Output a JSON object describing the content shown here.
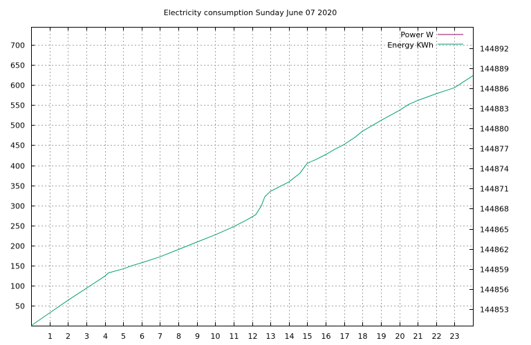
{
  "chart_data": {
    "type": "line",
    "title": "Electricity consumption Sunday June 07 2020",
    "xlabel": "",
    "ylabel": "",
    "x_ticks": [
      "1",
      "2",
      "3",
      "4",
      "5",
      "6",
      "7",
      "8",
      "9",
      "10",
      "11",
      "12",
      "13",
      "14",
      "15",
      "16",
      "17",
      "18",
      "19",
      "20",
      "21",
      "22",
      "23"
    ],
    "xlim": [
      0,
      24
    ],
    "y_left_ticks": [
      "50",
      "100",
      "150",
      "200",
      "250",
      "300",
      "350",
      "400",
      "450",
      "500",
      "550",
      "600",
      "650",
      "700"
    ],
    "ylim_left": [
      0,
      745
    ],
    "y_right_ticks": [
      "144853",
      "144856",
      "144859",
      "144862",
      "144865",
      "144868",
      "144871",
      "144874",
      "144877",
      "144880",
      "144883",
      "144886",
      "144889",
      "144892"
    ],
    "ylim_right": [
      144850.5,
      144895.2
    ],
    "grid": true,
    "legend_position": "top-right",
    "colors": {
      "power": "#990066",
      "energy": "#009e73"
    },
    "series": [
      {
        "name": "Power W",
        "axis": "left",
        "x": [],
        "y": []
      },
      {
        "name": "Energy KWh",
        "axis": "right",
        "x": [
          0,
          1,
          2,
          3,
          4,
          4.2,
          5,
          5.5,
          6,
          7,
          8,
          9,
          10,
          11,
          11.7,
          12.2,
          12.5,
          12.7,
          13,
          14,
          14.6,
          15,
          15.5,
          16,
          16.5,
          17,
          17.6,
          18,
          18.5,
          19,
          20,
          20.5,
          21,
          22,
          23,
          24
        ],
        "y": [
          144850.5,
          144852.4,
          144854.3,
          144856.1,
          144857.9,
          144858.4,
          144859.0,
          144859.5,
          144859.9,
          144860.8,
          144861.9,
          144863.0,
          144864.1,
          144865.3,
          144866.3,
          144867.1,
          144868.4,
          144869.8,
          144870.6,
          144872.0,
          144873.3,
          144874.8,
          144875.4,
          144876.1,
          144876.9,
          144877.6,
          144878.7,
          144879.6,
          144880.4,
          144881.2,
          144882.7,
          144883.6,
          144884.2,
          144885.2,
          144886.1,
          144887.9
        ]
      }
    ]
  }
}
